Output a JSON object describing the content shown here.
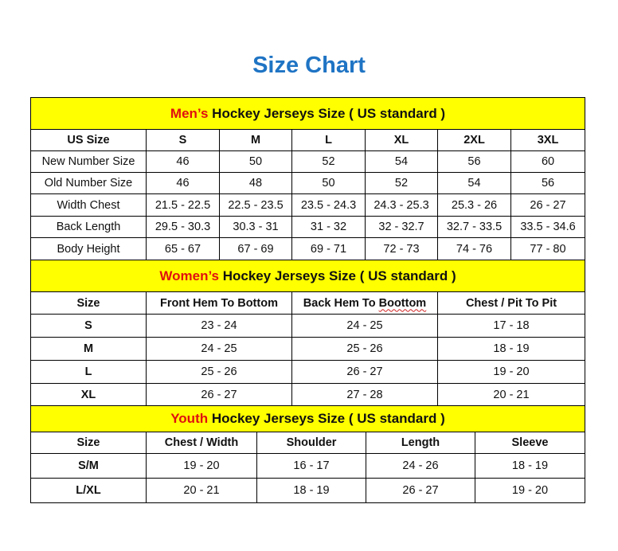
{
  "title": "Size Chart",
  "colors": {
    "title": "#1f74c4",
    "header_bg": "#ffff00",
    "accent": "#e01010"
  },
  "men": {
    "heading_accent": "Men’s",
    "heading_rest": " Hockey Jerseys Size ( US standard )",
    "columns": [
      "US Size",
      "S",
      "M",
      "L",
      "XL",
      "2XL",
      "3XL"
    ],
    "rows": [
      [
        "New Number Size",
        "46",
        "50",
        "52",
        "54",
        "56",
        "60"
      ],
      [
        "Old Number Size",
        "46",
        "48",
        "50",
        "52",
        "54",
        "56"
      ],
      [
        "Width Chest",
        "21.5 - 22.5",
        "22.5 - 23.5",
        "23.5 - 24.3",
        "24.3 - 25.3",
        "25.3 - 26",
        "26 - 27"
      ],
      [
        "Back Length",
        "29.5 - 30.3",
        "30.3 - 31",
        "31 - 32",
        "32 - 32.7",
        "32.7 - 33.5",
        "33.5 - 34.6"
      ],
      [
        "Body Height",
        "65 - 67",
        "67 - 69",
        "69 - 71",
        "72 - 73",
        "74 - 76",
        "77 - 80"
      ]
    ]
  },
  "women": {
    "heading_accent": "Women’s",
    "heading_rest": " Hockey Jerseys Size ( US standard )",
    "columns": [
      "Size",
      "Front Hem To Bottom",
      "Back Hem To Boottom",
      "Chest / Pit To Pit"
    ],
    "rows": [
      [
        "S",
        "23 - 24",
        "24 - 25",
        "17 - 18"
      ],
      [
        "M",
        "24 - 25",
        "25 - 26",
        "18 - 19"
      ],
      [
        "L",
        "25 - 26",
        "26 - 27",
        "19 - 20"
      ],
      [
        "XL",
        "26 - 27",
        "27 - 28",
        "20 - 21"
      ]
    ]
  },
  "youth": {
    "heading_accent": "Youth",
    "heading_rest": " Hockey Jerseys Size ( US standard )",
    "columns": [
      "Size",
      "Chest / Width",
      "Shoulder",
      "Length",
      "Sleeve"
    ],
    "rows": [
      [
        "S/M",
        "19 - 20",
        "16 - 17",
        "24 - 26",
        "18 - 19"
      ],
      [
        "L/XL",
        "20 - 21",
        "18 - 19",
        "26 - 27",
        "19 - 20"
      ]
    ]
  }
}
